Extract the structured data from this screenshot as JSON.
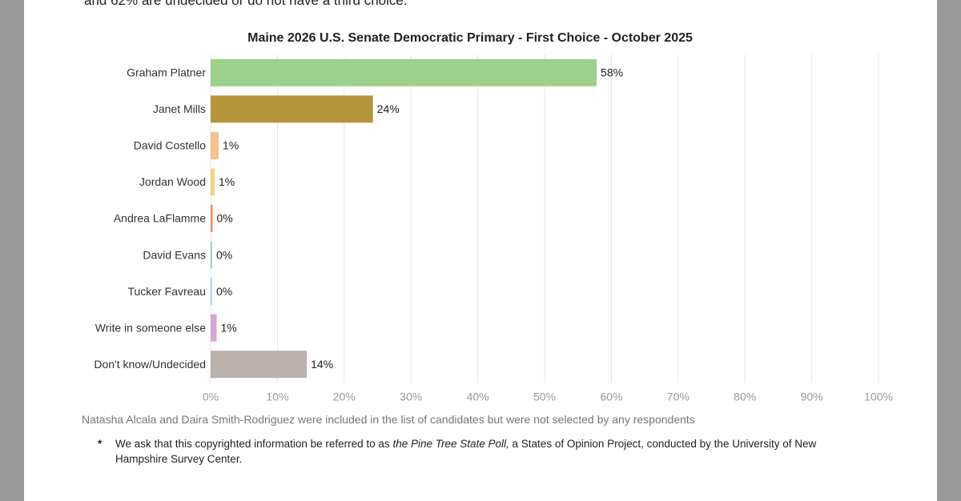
{
  "document": {
    "intro_fragment": "and 62% are undecided or do not have a third choice.",
    "note": "Natasha Alcala and Daira Smith-Rodriguez were included in the list of candidates but were not selected by any respondents",
    "footnote": {
      "marker": "*",
      "before": "We ask that this copyrighted information be referred to as ",
      "emphasis": "the Pine Tree State Poll,",
      "after": " a States of Opinion Project, conducted by the University of New Hampshire Survey Center."
    }
  },
  "chart_data": {
    "type": "hbar",
    "title": "Maine 2026 U.S. Senate Democratic Primary - First Choice - October 2025",
    "categories": [
      "Graham Platner",
      "Janet Mills",
      "David Costello",
      "Jordan Wood",
      "Andrea LaFlamme",
      "David Evans",
      "Tucker Favreau",
      "Write in someone else",
      "Don't know/Undecided"
    ],
    "values": [
      57.8,
      24.3,
      1.2,
      0.6,
      0.3,
      0.2,
      0.2,
      0.9,
      14.4
    ],
    "value_labels": [
      "58%",
      "24%",
      "1%",
      "1%",
      "0%",
      "0%",
      "0%",
      "1%",
      "14%"
    ],
    "colors": [
      "#9dd18b",
      "#b5953a",
      "#f7c08e",
      "#f5d27a",
      "#e8935a",
      "#9bc3c0",
      "#a8c8e0",
      "#d4a6d2",
      "#bcb0ad"
    ],
    "xlim": [
      0,
      100
    ],
    "xticks": [
      {
        "value": 0,
        "label": "0%"
      },
      {
        "value": 10,
        "label": "10%"
      },
      {
        "value": 20,
        "label": "20%"
      },
      {
        "value": 30,
        "label": "30%"
      },
      {
        "value": 40,
        "label": "40%"
      },
      {
        "value": 50,
        "label": "50%"
      },
      {
        "value": 60,
        "label": "60%"
      },
      {
        "value": 70,
        "label": "70%"
      },
      {
        "value": 80,
        "label": "80%"
      },
      {
        "value": 90,
        "label": "90%"
      },
      {
        "value": 100,
        "label": "100%"
      }
    ],
    "grid": true
  }
}
